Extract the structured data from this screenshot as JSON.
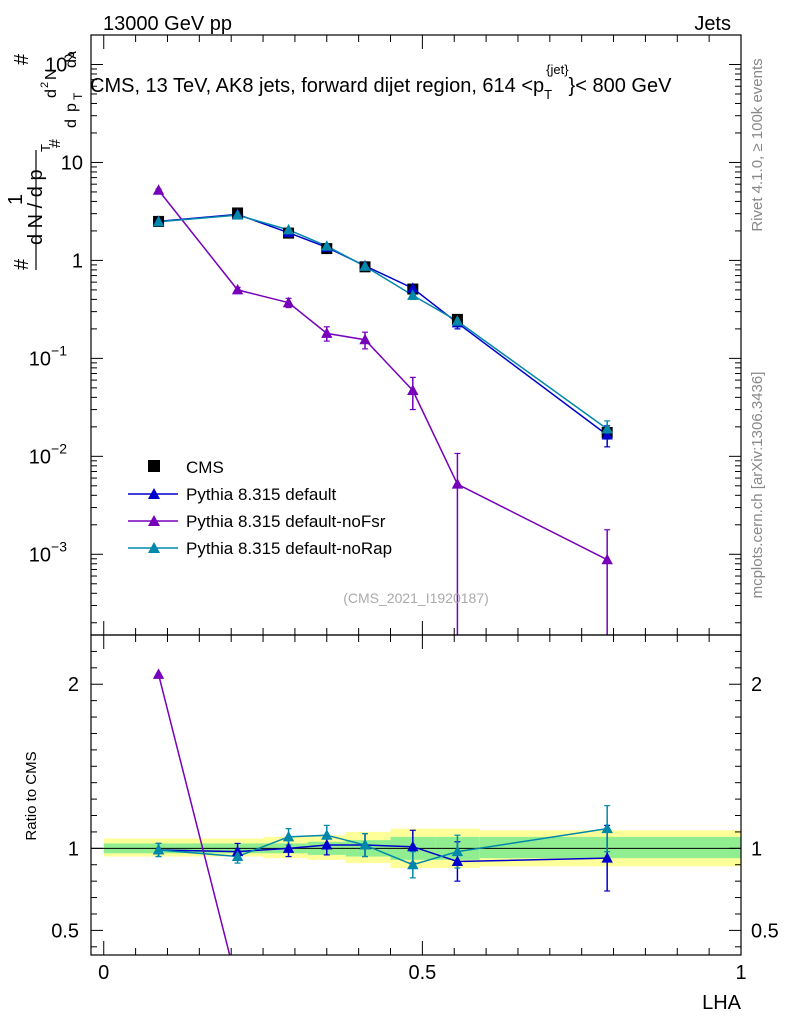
{
  "header": {
    "left_label": "13000 GeV pp",
    "right_label": "Jets"
  },
  "side_labels": {
    "rivet": "Rivet 4.1.0, ≥ 100k events",
    "mcplots": "mcplots.cern.ch [arXiv:1306.3436]"
  },
  "chart_data": [
    {
      "panel": "main",
      "type": "line",
      "title_parts": {
        "prefix": "CMS, 13 TeV, AK8 jets, forward dijet region, 614 <p",
        "sub": "T",
        "sup": "{jet}",
        "suffix": "}< 800 GeV"
      },
      "watermark": "(CMS_2021_I1920187)",
      "ylabel_parts": {
        "hash1": "#",
        "one": "1",
        "hash2": "#",
        "dN": "d N / d p",
        "T1": "T",
        "hash3": "#",
        "d": "d",
        "p": "p",
        "T2": "T",
        "d2N": "d",
        "two": "2",
        "N": "N",
        "dlambda": "dλ"
      },
      "yscale": "log",
      "ylim": [
        0.00015,
        200
      ],
      "xlim": [
        -0.02,
        1.0
      ],
      "y_ticks": [
        {
          "value": 100,
          "base": "10",
          "exp": "2"
        },
        {
          "value": 10,
          "base": "10",
          "exp": ""
        },
        {
          "value": 1,
          "base": "1",
          "exp": ""
        },
        {
          "value": 0.1,
          "base": "10",
          "exp": "−1"
        },
        {
          "value": 0.01,
          "base": "10",
          "exp": "−2"
        },
        {
          "value": 0.001,
          "base": "10",
          "exp": "−3"
        }
      ],
      "series": [
        {
          "name": "CMS",
          "color": "#000000",
          "marker": "square",
          "line": false,
          "x": [
            0.086,
            0.21,
            0.29,
            0.35,
            0.41,
            0.485,
            0.555,
            0.79
          ],
          "y": [
            2.5,
            3.05,
            1.9,
            1.32,
            0.86,
            0.51,
            0.25,
            0.0175
          ]
        },
        {
          "name": "Pythia 8.315 default",
          "color": "#0000cc",
          "marker": "triangle",
          "line": true,
          "x": [
            0.086,
            0.21,
            0.29,
            0.35,
            0.41,
            0.485,
            0.555,
            0.79
          ],
          "y": [
            2.5,
            2.95,
            1.92,
            1.36,
            0.88,
            0.52,
            0.23,
            0.0165
          ],
          "err_lo": [
            0.1,
            0.12,
            0.08,
            0.06,
            0.04,
            0.04,
            0.03,
            0.004
          ],
          "err_hi": [
            0.1,
            0.12,
            0.08,
            0.06,
            0.04,
            0.04,
            0.03,
            0.004
          ]
        },
        {
          "name": "Pythia 8.315 default-noFsr",
          "color": "#7700bb",
          "marker": "triangle",
          "line": true,
          "x": [
            0.086,
            0.21,
            0.29,
            0.35,
            0.41,
            0.485,
            0.555,
            0.79
          ],
          "y": [
            5.2,
            0.5,
            0.37,
            0.18,
            0.155,
            0.047,
            0.0052,
            0.00088
          ],
          "err_lo": [
            0.15,
            0.03,
            0.04,
            0.03,
            0.03,
            0.017,
            0.0051,
            0.00087
          ],
          "err_hi": [
            0.15,
            0.03,
            0.04,
            0.03,
            0.03,
            0.017,
            0.0055,
            0.0009
          ]
        },
        {
          "name": "Pythia 8.315 default-noRap",
          "color": "#0088aa",
          "marker": "triangle",
          "line": true,
          "x": [
            0.086,
            0.21,
            0.29,
            0.35,
            0.41,
            0.485,
            0.555,
            0.79
          ],
          "y": [
            2.48,
            2.9,
            2.05,
            1.4,
            0.87,
            0.44,
            0.24,
            0.019
          ],
          "err_lo": [
            0.1,
            0.12,
            0.08,
            0.06,
            0.04,
            0.04,
            0.03,
            0.004
          ],
          "err_hi": [
            0.1,
            0.12,
            0.08,
            0.06,
            0.04,
            0.04,
            0.03,
            0.004
          ]
        }
      ]
    },
    {
      "panel": "ratio",
      "type": "line",
      "ylabel": "Ratio to CMS",
      "xlabel": "LHA",
      "ylim": [
        0.35,
        2.3
      ],
      "xlim": [
        -0.02,
        1.0
      ],
      "y_ticks": [
        {
          "value": 2,
          "label": "2"
        },
        {
          "value": 1,
          "label": "1"
        },
        {
          "value": 0.5,
          "label": "0.5"
        }
      ],
      "x_ticks": [
        {
          "value": 0,
          "label": "0"
        },
        {
          "value": 0.5,
          "label": "0.5"
        },
        {
          "value": 1,
          "label": "1"
        }
      ],
      "bands": {
        "bin_edges": [
          0,
          0.17,
          0.25,
          0.32,
          0.38,
          0.45,
          0.52,
          0.59,
          1.0
        ],
        "inner_lo": [
          0.97,
          0.97,
          0.97,
          0.96,
          0.95,
          0.93,
          0.93,
          0.94
        ],
        "inner_hi": [
          1.03,
          1.03,
          1.03,
          1.04,
          1.05,
          1.07,
          1.07,
          1.07
        ],
        "outer_lo": [
          0.95,
          0.95,
          0.94,
          0.93,
          0.91,
          0.88,
          0.88,
          0.89
        ],
        "outer_hi": [
          1.06,
          1.06,
          1.07,
          1.08,
          1.1,
          1.12,
          1.12,
          1.11
        ],
        "inner_color": "#90ee90",
        "outer_color": "#ffff99"
      },
      "series": [
        {
          "name": "Pythia 8.315 default",
          "color": "#0000cc",
          "x": [
            0.086,
            0.21,
            0.29,
            0.35,
            0.41,
            0.485,
            0.555,
            0.79
          ],
          "y": [
            0.99,
            0.98,
            1.0,
            1.02,
            1.02,
            1.01,
            0.92,
            0.94
          ],
          "err": [
            0.04,
            0.05,
            0.05,
            0.06,
            0.07,
            0.1,
            0.12,
            0.2
          ]
        },
        {
          "name": "Pythia 8.315 default-noFsr",
          "color": "#7700bb",
          "x": [
            0.086,
            0.21
          ],
          "y": [
            2.06,
            0.16
          ],
          "err": [
            0.0,
            0.0
          ]
        },
        {
          "name": "Pythia 8.315 default-noRap",
          "color": "#0088aa",
          "x": [
            0.086,
            0.21,
            0.29,
            0.35,
            0.41,
            0.485,
            0.555,
            0.79
          ],
          "y": [
            0.99,
            0.95,
            1.07,
            1.08,
            1.02,
            0.9,
            0.98,
            1.12
          ],
          "err": [
            0.04,
            0.04,
            0.05,
            0.06,
            0.07,
            0.08,
            0.1,
            0.14
          ]
        }
      ]
    }
  ]
}
